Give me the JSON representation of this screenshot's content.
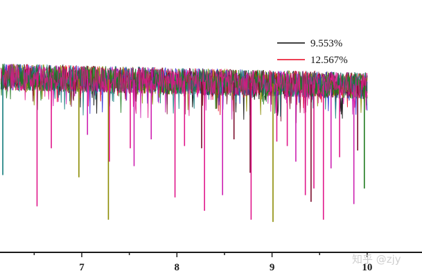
{
  "chart_data": {
    "type": "line",
    "title": "",
    "xlabel": "",
    "ylabel": "",
    "xlim": [
      6.15,
      10.5
    ],
    "ylim": [
      0.0,
      1.0
    ],
    "x_ticks": [
      7,
      8,
      9,
      10
    ],
    "x_tick_labels": [
      "7",
      "8",
      "9",
      "10"
    ],
    "legend_position": "top-right",
    "series": [
      {
        "name": "9.553%",
        "color": "#000000",
        "in_legend": true
      },
      {
        "name": "12.567%",
        "color": "#e8001c",
        "in_legend": true
      },
      {
        "color": "#2a2ad6",
        "in_legend": false
      },
      {
        "color": "#cc1fb0",
        "in_legend": false
      },
      {
        "color": "#8a8a00",
        "in_legend": false
      },
      {
        "color": "#7a0a2a",
        "in_legend": false
      },
      {
        "color": "#0f7a7a",
        "in_legend": false
      },
      {
        "color": "#1e7a1e",
        "in_legend": false
      },
      {
        "color": "#e0168a",
        "in_legend": false
      }
    ],
    "signal": {
      "x_start": 6.15,
      "x_end": 10.0,
      "baseline_start": 0.78,
      "baseline_end": 0.74,
      "noise_amplitude": 0.06
    },
    "spikes": [
      {
        "x": 6.17,
        "y": 0.34,
        "series": 6
      },
      {
        "x": 6.53,
        "y": 0.2,
        "series": 8
      },
      {
        "x": 6.68,
        "y": 0.46,
        "series": 8
      },
      {
        "x": 6.97,
        "y": 0.33,
        "series": 4
      },
      {
        "x": 7.06,
        "y": 0.52,
        "series": 3
      },
      {
        "x": 7.28,
        "y": 0.14,
        "series": 4
      },
      {
        "x": 7.29,
        "y": 0.4,
        "series": 8
      },
      {
        "x": 7.51,
        "y": 0.46,
        "series": 8
      },
      {
        "x": 7.55,
        "y": 0.38,
        "series": 3
      },
      {
        "x": 7.73,
        "y": 0.5,
        "series": 3
      },
      {
        "x": 7.98,
        "y": 0.24,
        "series": 8
      },
      {
        "x": 8.08,
        "y": 0.47,
        "series": 8
      },
      {
        "x": 8.26,
        "y": 0.46,
        "series": 5
      },
      {
        "x": 8.29,
        "y": 0.18,
        "series": 8
      },
      {
        "x": 8.48,
        "y": 0.25,
        "series": 3
      },
      {
        "x": 8.6,
        "y": 0.5,
        "series": 5
      },
      {
        "x": 8.77,
        "y": 0.35,
        "series": 5
      },
      {
        "x": 8.78,
        "y": 0.14,
        "series": 8
      },
      {
        "x": 9.01,
        "y": 0.13,
        "series": 4
      },
      {
        "x": 9.05,
        "y": 0.49,
        "series": 8
      },
      {
        "x": 9.16,
        "y": 0.47,
        "series": 8
      },
      {
        "x": 9.25,
        "y": 0.4,
        "series": 3
      },
      {
        "x": 9.35,
        "y": 0.25,
        "series": 8
      },
      {
        "x": 9.41,
        "y": 0.22,
        "series": 5
      },
      {
        "x": 9.44,
        "y": 0.28,
        "series": 8
      },
      {
        "x": 9.54,
        "y": 0.14,
        "series": 8
      },
      {
        "x": 9.62,
        "y": 0.37,
        "series": 3
      },
      {
        "x": 9.71,
        "y": 0.42,
        "series": 8
      },
      {
        "x": 9.86,
        "y": 0.21,
        "series": 3
      },
      {
        "x": 9.9,
        "y": 0.45,
        "series": 5
      },
      {
        "x": 9.97,
        "y": 0.28,
        "series": 7
      }
    ]
  },
  "watermark": {
    "text": "知乎 @zjy"
  }
}
